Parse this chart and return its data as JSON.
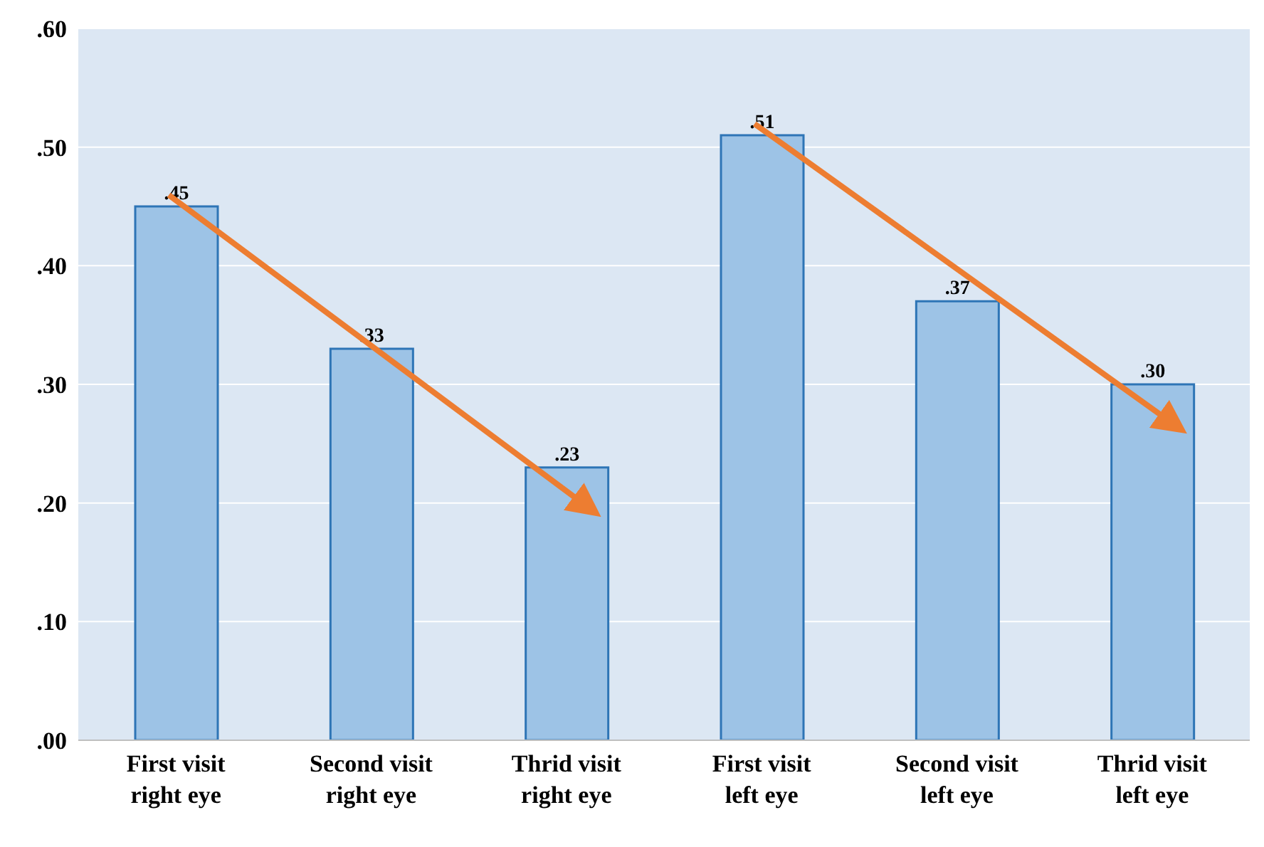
{
  "chart_data": {
    "type": "bar",
    "categories": [
      "First visit right eye",
      "Second visit right eye",
      "Thrid visit right eye",
      "First visit left eye",
      "Second visit left eye",
      "Thrid visit left eye"
    ],
    "values": [
      0.45,
      0.33,
      0.23,
      0.51,
      0.37,
      0.3
    ],
    "value_labels": [
      ".45",
      ".33",
      ".23",
      ".51",
      ".37",
      ".30"
    ],
    "color": "#9dc3e6",
    "ylim": [
      0,
      0.6
    ],
    "yticks": [
      {
        "value": 0,
        "label": ".00"
      },
      {
        "value": 0.1,
        "label": ".10"
      },
      {
        "value": 0.2,
        "label": ".20"
      },
      {
        "value": 0.3,
        "label": ".30"
      },
      {
        "value": 0.4,
        "label": ".40"
      },
      {
        "value": 0.5,
        "label": ".50"
      },
      {
        "value": 0.6,
        "label": ".60"
      }
    ],
    "grid": "y"
  }
}
